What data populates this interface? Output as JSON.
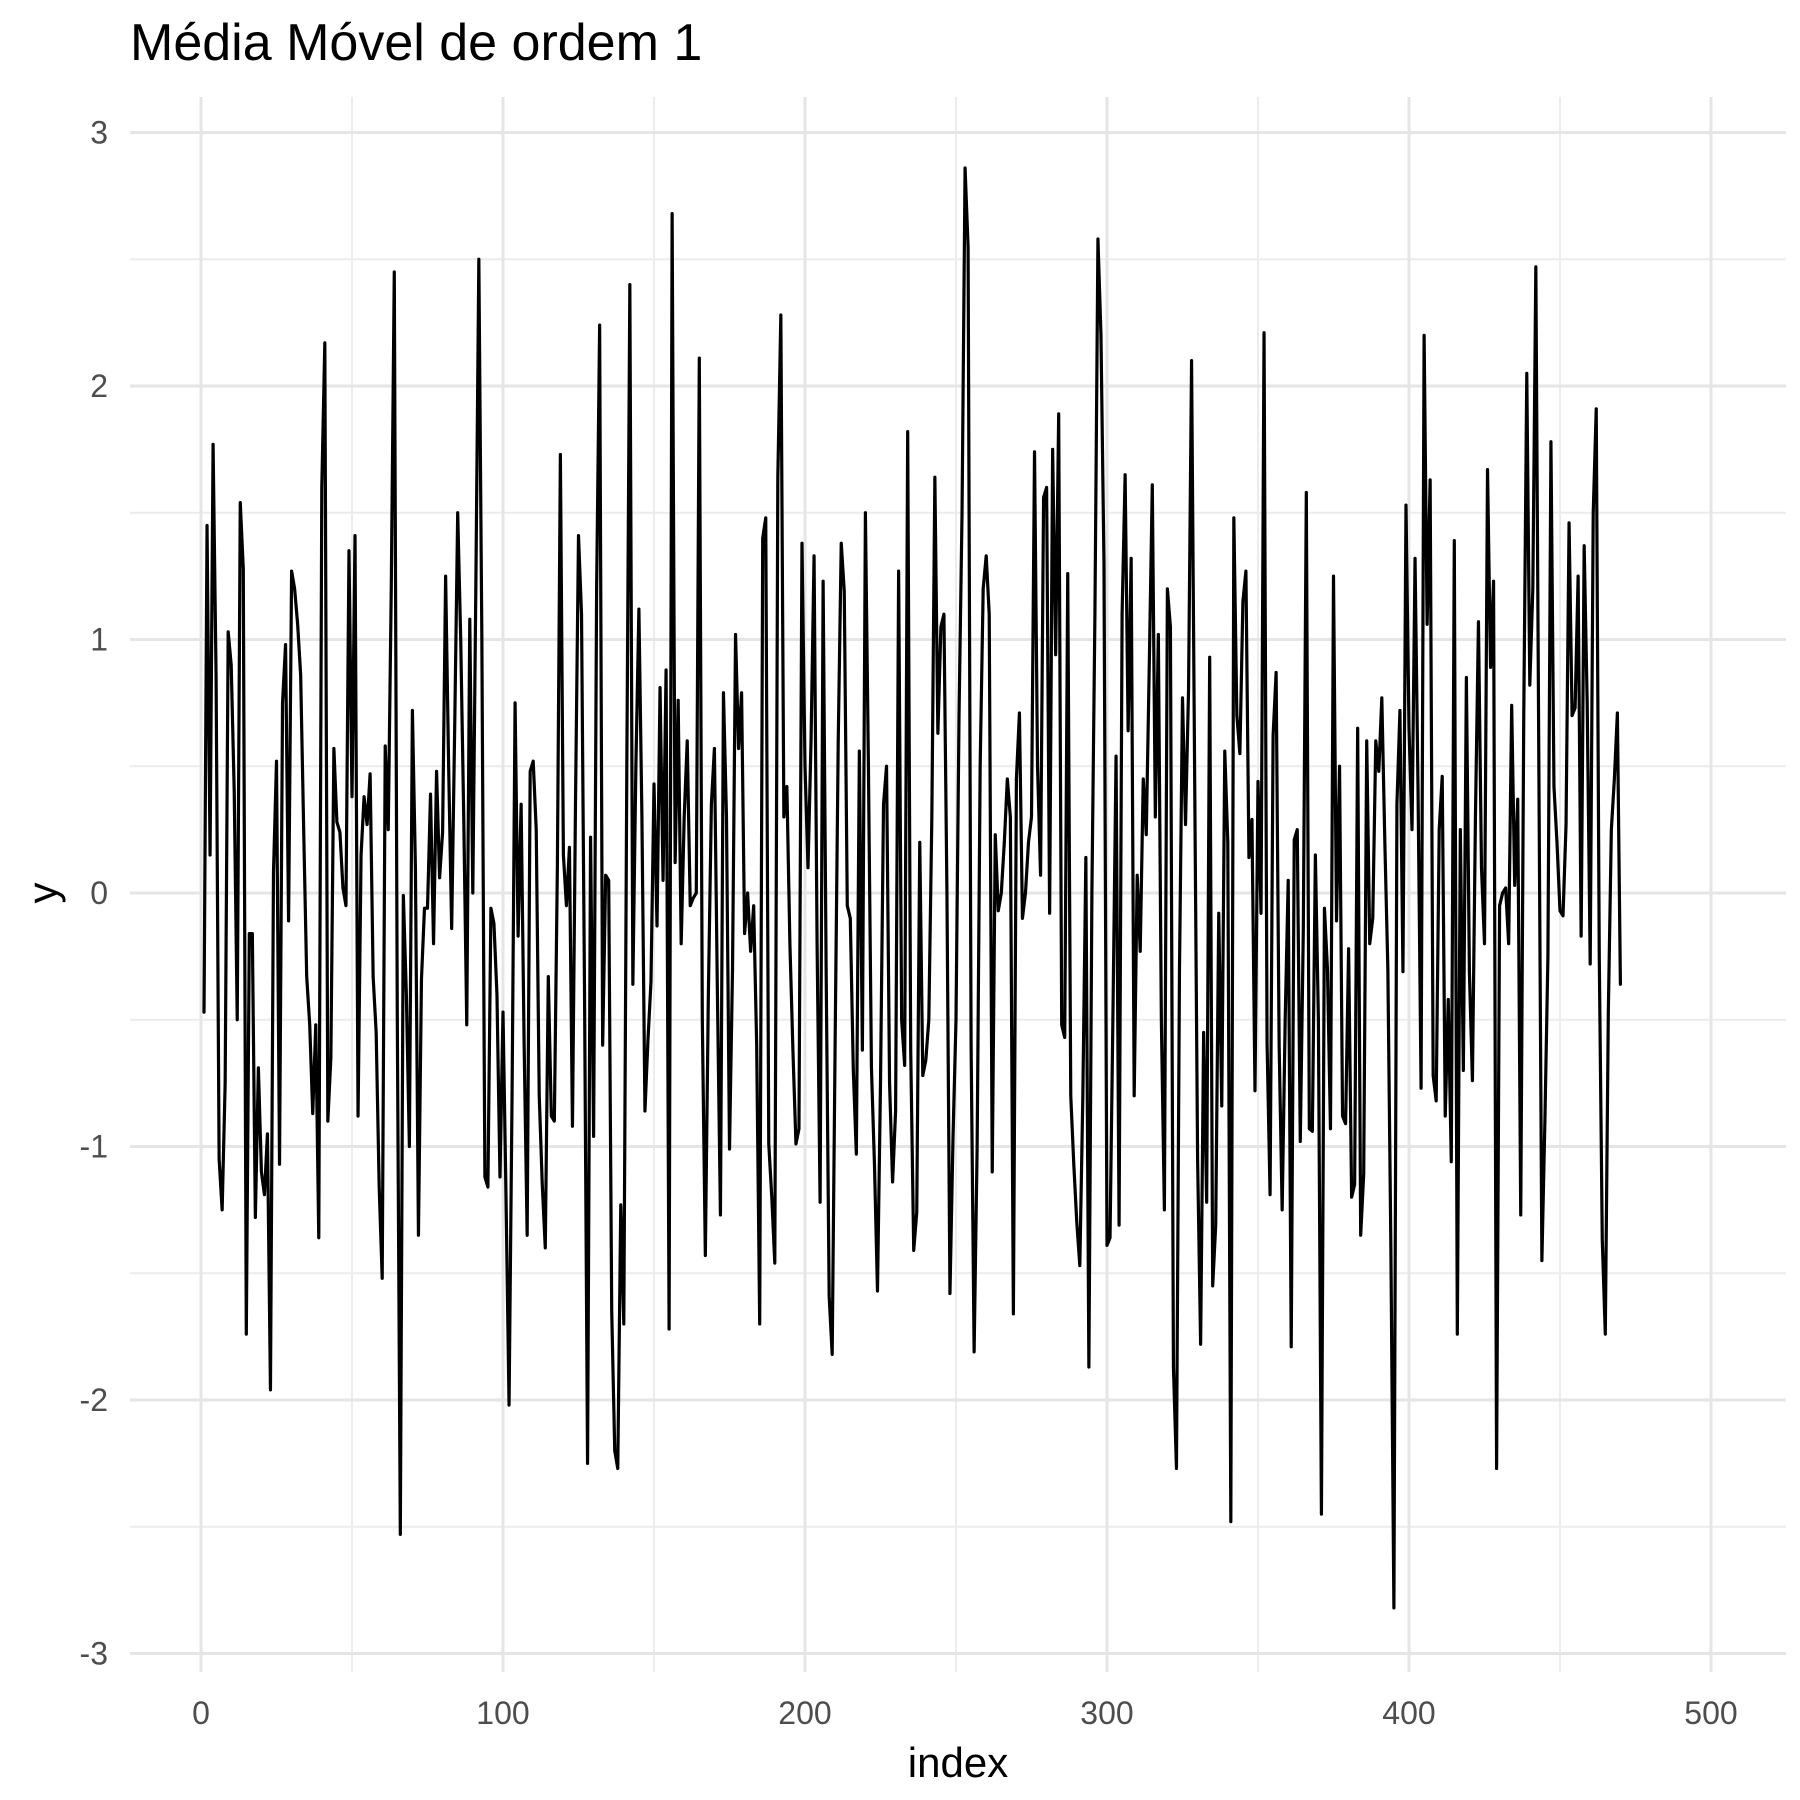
{
  "chart_data": {
    "type": "line",
    "title": "Média Móvel de ordem 1",
    "xlabel": "index",
    "ylabel": "y",
    "xlim": [
      1,
      500
    ],
    "ylim": [
      -3,
      3
    ],
    "x_ticks": [
      0,
      100,
      200,
      300,
      400,
      500
    ],
    "x_tick_labels": [
      "0",
      "100",
      "200",
      "300",
      "400",
      "500"
    ],
    "y_ticks": [
      -3,
      -2,
      -1,
      0,
      1,
      2,
      3
    ],
    "y_tick_labels": [
      "-3",
      "-2",
      "-1",
      "0",
      "1",
      "2",
      "3"
    ],
    "grid": true,
    "series": [
      {
        "color": "#000000",
        "values": [
          -0.47,
          1.45,
          0.15,
          1.77,
          0.85,
          -1.05,
          -1.25,
          -0.75,
          1.03,
          0.9,
          0.4,
          -0.5,
          1.54,
          1.28,
          -1.74,
          -0.16,
          -0.16,
          -1.28,
          -0.69,
          -1.1,
          -1.19,
          -0.95,
          -1.96,
          0.08,
          0.52,
          -1.07,
          0.75,
          0.98,
          -0.11,
          1.27,
          1.2,
          1.06,
          0.86,
          0.25,
          -0.33,
          -0.52,
          -0.87,
          -0.52,
          -1.36,
          1.6,
          2.17,
          -0.9,
          -0.65,
          0.57,
          0.28,
          0.24,
          0.02,
          -0.05,
          1.35,
          0.38,
          1.41,
          -0.88,
          0.15,
          0.38,
          0.27,
          0.47,
          -0.33,
          -0.55,
          -1.16,
          -1.52,
          0.58,
          0.25,
          1.2,
          2.45,
          -0.5,
          -2.53,
          -0.01,
          -0.4,
          -1.0,
          0.72,
          0.1,
          -1.35,
          -0.34,
          -0.06,
          -0.06,
          0.39,
          -0.2,
          0.48,
          0.06,
          0.24,
          1.25,
          0.5,
          -0.14,
          0.65,
          1.5,
          1.0,
          0.3,
          -0.52,
          1.08,
          0.0,
          1.2,
          2.5,
          1.0,
          -1.12,
          -1.16,
          -0.06,
          -0.12,
          -0.4,
          -1.12,
          -0.47,
          -1.2,
          -2.02,
          -0.8,
          0.75,
          -0.17,
          0.35,
          -0.6,
          -1.35,
          0.48,
          0.52,
          0.25,
          -0.8,
          -1.15,
          -1.4,
          -0.33,
          -0.88,
          -0.9,
          0.1,
          1.73,
          0.15,
          -0.05,
          0.18,
          -0.92,
          0.35,
          1.41,
          1.1,
          -0.4,
          -2.25,
          0.22,
          -0.96,
          1.2,
          2.24,
          -0.6,
          0.07,
          0.05,
          -1.65,
          -2.2,
          -2.27,
          -1.23,
          -1.7,
          0.5,
          2.4,
          -0.36,
          0.5,
          1.12,
          0.3,
          -0.86,
          -0.58,
          -0.35,
          0.43,
          -0.13,
          0.81,
          0.05,
          0.88,
          -1.72,
          2.68,
          0.12,
          0.76,
          -0.2,
          0.3,
          0.6,
          -0.05,
          -0.02,
          0.0,
          2.11,
          -0.5,
          -1.43,
          -0.4,
          0.35,
          0.57,
          -0.4,
          -1.27,
          0.79,
          0.3,
          -1.01,
          -0.3,
          1.02,
          0.57,
          0.79,
          -0.16,
          0.0,
          -0.23,
          -0.05,
          -0.6,
          -1.7,
          1.4,
          1.48,
          -0.99,
          -1.2,
          -1.46,
          1.64,
          2.28,
          0.3,
          0.42,
          -0.2,
          -0.62,
          -0.99,
          -0.93,
          1.38,
          0.5,
          0.1,
          0.6,
          1.33,
          -0.2,
          -1.22,
          1.23,
          -0.3,
          -1.59,
          -1.82,
          -0.56,
          0.6,
          1.38,
          1.19,
          -0.05,
          -0.1,
          -0.7,
          -1.03,
          0.56,
          -0.62,
          1.5,
          0.5,
          -0.69,
          -1.07,
          -1.57,
          -0.75,
          0.35,
          0.5,
          -0.75,
          -1.14,
          -0.86,
          1.27,
          -0.5,
          -0.68,
          1.82,
          -0.62,
          -1.41,
          -1.26,
          0.2,
          -0.72,
          -0.66,
          -0.5,
          0.3,
          1.64,
          0.63,
          1.05,
          1.1,
          0.0,
          -1.58,
          -0.97,
          -0.5,
          0.7,
          1.5,
          2.86,
          2.55,
          -0.6,
          -1.81,
          -1.0,
          0.5,
          1.2,
          1.33,
          1.1,
          -1.1,
          0.23,
          -0.07,
          0.0,
          0.2,
          0.45,
          0.3,
          -1.66,
          0.45,
          0.71,
          -0.1,
          0.0,
          0.2,
          0.3,
          1.74,
          0.5,
          0.07,
          1.56,
          1.6,
          -0.08,
          1.75,
          0.94,
          1.89,
          -0.52,
          -0.57,
          1.26,
          -0.8,
          -1.07,
          -1.3,
          -1.47,
          -0.8,
          0.14,
          -1.87,
          0.0,
          1.1,
          2.58,
          2.2,
          1.3,
          -1.39,
          -1.36,
          -0.45,
          0.54,
          -1.31,
          1.1,
          1.65,
          0.64,
          1.32,
          -0.8,
          0.07,
          -0.23,
          0.45,
          0.23,
          0.9,
          1.61,
          0.3,
          1.02,
          -0.5,
          -1.25,
          1.2,
          1.05,
          -1.87,
          -2.27,
          -0.3,
          0.77,
          0.27,
          0.8,
          2.1,
          0.5,
          -1.05,
          -1.78,
          -0.55,
          -1.22,
          0.93,
          -1.55,
          -1.31,
          -0.08,
          -0.84,
          0.56,
          0.2,
          -2.48,
          1.48,
          0.7,
          0.55,
          1.15,
          1.27,
          0.14,
          0.29,
          -0.78,
          0.44,
          -0.08,
          2.21,
          -0.59,
          -1.19,
          0.62,
          0.87,
          -0.6,
          -1.25,
          -0.5,
          0.05,
          -1.79,
          0.21,
          0.25,
          -0.98,
          -0.15,
          1.58,
          -0.93,
          -0.94,
          0.15,
          -0.5,
          -2.45,
          -0.06,
          -0.3,
          -0.93,
          1.25,
          -0.11,
          0.5,
          -0.88,
          -0.91,
          -0.22,
          -1.2,
          -1.15,
          0.65,
          -1.35,
          -1.11,
          0.6,
          -0.2,
          -0.1,
          0.6,
          0.48,
          0.77,
          0.2,
          -0.3,
          -1.4,
          -2.82,
          0.35,
          0.72,
          -0.31,
          1.53,
          0.65,
          0.25,
          1.32,
          0.4,
          -0.77,
          2.2,
          1.06,
          1.63,
          -0.72,
          -0.82,
          0.25,
          0.46,
          -0.88,
          -0.42,
          -1.06,
          1.39,
          -1.74,
          0.25,
          -0.7,
          0.85,
          -0.31,
          -0.74,
          0.3,
          1.07,
          0.1,
          -0.2,
          1.67,
          0.89,
          1.23,
          -2.27,
          -0.05,
          0.0,
          0.02,
          -0.2,
          0.74,
          0.03,
          0.37,
          -1.27,
          0.7,
          2.05,
          0.82,
          1.2,
          2.47,
          0.5,
          -1.45,
          -0.9,
          -0.25,
          1.78,
          0.42,
          0.2,
          -0.07,
          -0.09,
          0.27,
          1.46,
          0.7,
          0.73,
          1.25,
          -0.17,
          1.37,
          0.75,
          -0.28,
          1.5,
          1.91,
          -0.25,
          -1.37,
          -1.74,
          -0.47,
          0.25,
          0.45,
          0.71,
          -0.36
        ]
      }
    ]
  }
}
